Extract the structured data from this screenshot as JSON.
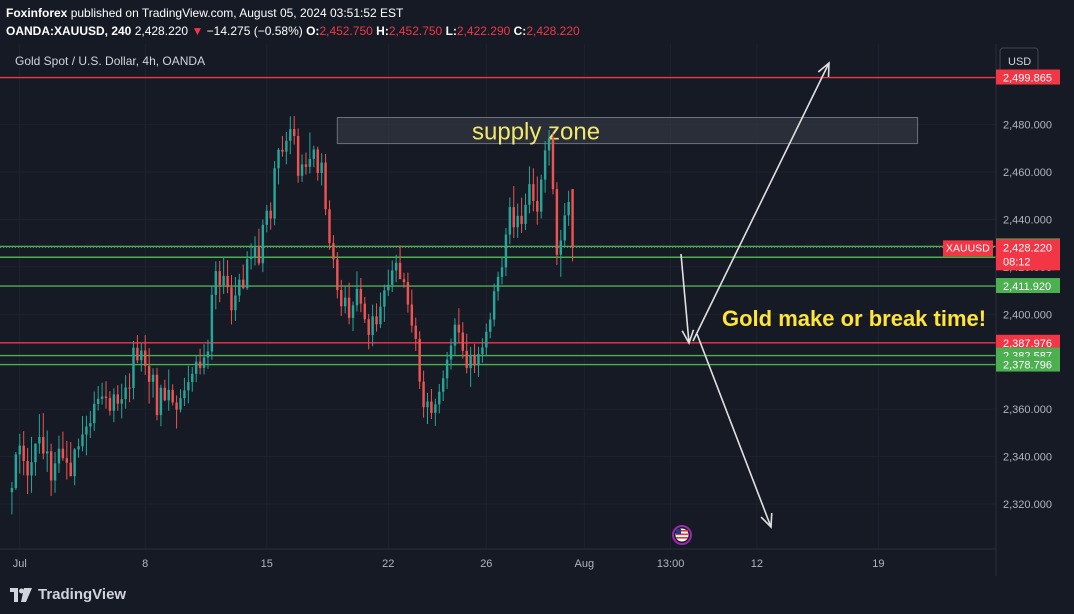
{
  "header": {
    "publisher": "Foxinforex",
    "published_text": "published on TradingView.com, August 05, 2024 03:51:52 EST",
    "symbol": "OANDA:XAUUSD, 240",
    "price": "2,428.220",
    "change_arrow": "▼",
    "change": "−14.275 (−0.58%)",
    "o_label": "O:",
    "o_value": "2,452.750",
    "h_label": "H:",
    "h_value": "2,452.750",
    "l_label": "L:",
    "l_value": "2,422.290",
    "c_label": "C:",
    "c_value": "2,428.220"
  },
  "footer": {
    "logo_text": "TradingView"
  },
  "chart_data": {
    "type": "candlestick",
    "title": "Gold Spot / U.S. Dollar, 4h, OANDA",
    "currency": "USD",
    "ylim": [
      2301,
      2514
    ],
    "y_ticks": [
      2320,
      2340,
      2360,
      2380,
      2400,
      2420,
      2440,
      2460,
      2480
    ],
    "y_tick_labels": [
      "2,320.000",
      "2,340.000",
      "2,360.000",
      "2,380.000",
      "2,400.000",
      "2,420.000",
      "2,440.000",
      "2,460.000",
      "2,480.000"
    ],
    "x_labels": [
      {
        "label": "Jul",
        "at": 2
      },
      {
        "label": "8",
        "at": 34
      },
      {
        "label": "15",
        "at": 65
      },
      {
        "label": "22",
        "at": 96
      },
      {
        "label": "26",
        "at": 121
      },
      {
        "label": "Aug",
        "at": 146
      },
      {
        "label": "13:00",
        "at": 168
      },
      {
        "label": "12",
        "at": 190
      },
      {
        "label": "19",
        "at": 221
      }
    ],
    "x_range": [
      -1,
      251
    ],
    "candles": [
      [
        2325.0,
        2329.3,
        2315.6,
        2326.7
      ],
      [
        2326.7,
        2341.9,
        2325.9,
        2340.9
      ],
      [
        2340.9,
        2349.6,
        2332.8,
        2344.6
      ],
      [
        2344.6,
        2350.7,
        2332.1,
        2338.1
      ],
      [
        2338.1,
        2343.6,
        2324.2,
        2332.0
      ],
      [
        2332.0,
        2348.3,
        2324.7,
        2337.6
      ],
      [
        2337.6,
        2345.5,
        2331.9,
        2345.5
      ],
      [
        2345.5,
        2357.9,
        2341.2,
        2348.2
      ],
      [
        2348.2,
        2358.3,
        2338.8,
        2341.3
      ],
      [
        2341.3,
        2351.0,
        2333.5,
        2342.2
      ],
      [
        2342.2,
        2345.4,
        2323.4,
        2329.9
      ],
      [
        2329.9,
        2341.9,
        2324.7,
        2337.1
      ],
      [
        2337.1,
        2348.8,
        2333.1,
        2343.3
      ],
      [
        2343.3,
        2350.5,
        2338.2,
        2339.3
      ],
      [
        2339.3,
        2346.6,
        2330.3,
        2337.4
      ],
      [
        2337.4,
        2346.1,
        2331.7,
        2331.7
      ],
      [
        2331.7,
        2343.6,
        2327.9,
        2343.0
      ],
      [
        2343.0,
        2347.6,
        2339.5,
        2344.3
      ],
      [
        2344.3,
        2357.1,
        2342.2,
        2349.3
      ],
      [
        2349.3,
        2357.2,
        2340.5,
        2352.7
      ],
      [
        2352.7,
        2359.3,
        2347.8,
        2354.1
      ],
      [
        2354.1,
        2367.4,
        2350.8,
        2362.2
      ],
      [
        2362.2,
        2369.8,
        2359.4,
        2364.3
      ],
      [
        2364.3,
        2371.1,
        2361.9,
        2365.3
      ],
      [
        2365.3,
        2371.8,
        2360.2,
        2364.7
      ],
      [
        2364.7,
        2367.6,
        2357.3,
        2359.3
      ],
      [
        2359.3,
        2368.8,
        2354.5,
        2366.2
      ],
      [
        2366.2,
        2370.1,
        2359.3,
        2362.3
      ],
      [
        2362.3,
        2370.7,
        2356.1,
        2364.2
      ],
      [
        2364.2,
        2374.3,
        2360.2,
        2369.1
      ],
      [
        2369.1,
        2375.1,
        2362.9,
        2368.9
      ],
      [
        2368.9,
        2388.8,
        2364.1,
        2385.9
      ],
      [
        2385.9,
        2391.2,
        2379.4,
        2380.6
      ],
      [
        2380.6,
        2387.7,
        2375.8,
        2384.7
      ],
      [
        2384.7,
        2391.2,
        2374.4,
        2378.2
      ],
      [
        2378.2,
        2385.7,
        2362.3,
        2371.5
      ],
      [
        2371.5,
        2377.2,
        2364.9,
        2374.5
      ],
      [
        2374.5,
        2377.4,
        2355.3,
        2357.5
      ],
      [
        2357.5,
        2370.3,
        2352.8,
        2369.0
      ],
      [
        2369.0,
        2372.4,
        2363.3,
        2363.7
      ],
      [
        2363.7,
        2376.7,
        2359.3,
        2368.1
      ],
      [
        2368.1,
        2370.5,
        2361.5,
        2362.8
      ],
      [
        2362.8,
        2365.8,
        2351.8,
        2359.8
      ],
      [
        2359.8,
        2368.4,
        2358.6,
        2364.6
      ],
      [
        2364.6,
        2373.2,
        2361.3,
        2367.9
      ],
      [
        2367.9,
        2378.3,
        2362.4,
        2371.4
      ],
      [
        2371.4,
        2377.8,
        2367.3,
        2374.9
      ],
      [
        2374.9,
        2382.8,
        2371.4,
        2380.0
      ],
      [
        2380.0,
        2385.5,
        2374.6,
        2377.4
      ],
      [
        2377.4,
        2387.4,
        2374.6,
        2381.8
      ],
      [
        2381.8,
        2389.3,
        2377.0,
        2384.3
      ],
      [
        2384.3,
        2412.0,
        2380.8,
        2408.2
      ],
      [
        2408.2,
        2422.3,
        2402.1,
        2418.2
      ],
      [
        2418.2,
        2422.5,
        2405.1,
        2412.3
      ],
      [
        2412.3,
        2424.2,
        2408.6,
        2416.2
      ],
      [
        2416.2,
        2422.8,
        2408.9,
        2411.4
      ],
      [
        2411.4,
        2416.6,
        2395.7,
        2401.7
      ],
      [
        2401.7,
        2415.7,
        2397.2,
        2407.9
      ],
      [
        2407.9,
        2417.1,
        2405.2,
        2414.6
      ],
      [
        2414.6,
        2421.0,
        2410.5,
        2411.0
      ],
      [
        2411.0,
        2426.6,
        2410.3,
        2423.3
      ],
      [
        2423.3,
        2429.9,
        2418.9,
        2424.3
      ],
      [
        2424.3,
        2432.9,
        2420.6,
        2428.3
      ],
      [
        2428.3,
        2436.1,
        2420.6,
        2421.5
      ],
      [
        2421.5,
        2440.0,
        2417.8,
        2437.7
      ],
      [
        2437.7,
        2446.1,
        2434.6,
        2443.7
      ],
      [
        2443.7,
        2447.2,
        2435.7,
        2440.4
      ],
      [
        2440.4,
        2464.6,
        2437.5,
        2461.6
      ],
      [
        2461.6,
        2470.1,
        2454.8,
        2469.4
      ],
      [
        2469.4,
        2475.2,
        2466.5,
        2468.6
      ],
      [
        2468.6,
        2476.9,
        2463.3,
        2473.2
      ],
      [
        2473.2,
        2483.5,
        2467.5,
        2478.1
      ],
      [
        2478.1,
        2483.6,
        2471.6,
        2475.2
      ],
      [
        2475.2,
        2478.4,
        2455.5,
        2458.4
      ],
      [
        2458.4,
        2467.4,
        2455.8,
        2463.2
      ],
      [
        2463.2,
        2468.2,
        2458.9,
        2462.2
      ],
      [
        2462.2,
        2476.7,
        2459.4,
        2465.5
      ],
      [
        2465.5,
        2471.1,
        2462.0,
        2469.5
      ],
      [
        2469.5,
        2470.7,
        2456.4,
        2459.6
      ],
      [
        2459.6,
        2467.9,
        2454.3,
        2464.0
      ],
      [
        2464.0,
        2467.6,
        2441.8,
        2444.3
      ],
      [
        2444.3,
        2448.1,
        2427.2,
        2430.0
      ],
      [
        2430.0,
        2433.4,
        2419.5,
        2423.2
      ],
      [
        2423.2,
        2426.2,
        2406.7,
        2410.2
      ],
      [
        2410.2,
        2414.5,
        2399.3,
        2403.4
      ],
      [
        2403.4,
        2411.8,
        2400.4,
        2407.0
      ],
      [
        2407.0,
        2413.3,
        2395.8,
        2398.5
      ],
      [
        2398.5,
        2405.4,
        2392.9,
        2403.8
      ],
      [
        2403.8,
        2418.1,
        2401.2,
        2410.7
      ],
      [
        2410.7,
        2415.3,
        2400.9,
        2404.5
      ],
      [
        2404.5,
        2407.3,
        2396.3,
        2397.9
      ],
      [
        2397.9,
        2400.1,
        2385.2,
        2391.3
      ],
      [
        2391.3,
        2404.1,
        2386.5,
        2399.1
      ],
      [
        2399.1,
        2404.6,
        2392.7,
        2395.8
      ],
      [
        2395.8,
        2409.2,
        2394.2,
        2403.2
      ],
      [
        2403.2,
        2412.5,
        2396.8,
        2410.1
      ],
      [
        2410.1,
        2418.8,
        2407.7,
        2412.4
      ],
      [
        2412.4,
        2422.7,
        2409.4,
        2418.5
      ],
      [
        2418.5,
        2425.1,
        2413.5,
        2421.7
      ],
      [
        2421.7,
        2429.1,
        2415.3,
        2414.8
      ],
      [
        2414.8,
        2417.5,
        2411.2,
        2413.6
      ],
      [
        2413.6,
        2417.6,
        2400.7,
        2404.1
      ],
      [
        2404.1,
        2410.4,
        2392.3,
        2395.2
      ],
      [
        2395.2,
        2398.6,
        2384.5,
        2389.6
      ],
      [
        2389.6,
        2392.8,
        2368.5,
        2371.6
      ],
      [
        2371.6,
        2376.2,
        2356.4,
        2360.8
      ],
      [
        2360.8,
        2366.9,
        2353.7,
        2363.2
      ],
      [
        2363.2,
        2368.5,
        2355.8,
        2358.4
      ],
      [
        2358.4,
        2364.4,
        2352.9,
        2362.0
      ],
      [
        2362.0,
        2370.6,
        2358.2,
        2367.3
      ],
      [
        2367.3,
        2376.3,
        2363.4,
        2373.0
      ],
      [
        2373.0,
        2384.1,
        2368.5,
        2380.9
      ],
      [
        2380.9,
        2389.8,
        2376.7,
        2386.8
      ],
      [
        2386.8,
        2398.3,
        2382.9,
        2395.6
      ],
      [
        2395.6,
        2402.6,
        2387.7,
        2392.3
      ],
      [
        2392.3,
        2396.7,
        2381.3,
        2384.6
      ],
      [
        2384.6,
        2391.8,
        2375.1,
        2377.3
      ],
      [
        2377.3,
        2386.3,
        2369.4,
        2382.9
      ],
      [
        2382.9,
        2387.5,
        2375.2,
        2378.4
      ],
      [
        2378.4,
        2386.3,
        2373.6,
        2383.2
      ],
      [
        2383.2,
        2389.9,
        2379.6,
        2386.0
      ],
      [
        2386.0,
        2396.1,
        2382.3,
        2392.6
      ],
      [
        2392.6,
        2400.7,
        2389.9,
        2397.8
      ],
      [
        2397.8,
        2412.9,
        2394.9,
        2409.7
      ],
      [
        2409.7,
        2418.0,
        2405.8,
        2415.8
      ],
      [
        2415.8,
        2423.9,
        2412.6,
        2419.8
      ],
      [
        2419.8,
        2436.4,
        2416.1,
        2433.6
      ],
      [
        2433.6,
        2449.3,
        2429.6,
        2445.2
      ],
      [
        2445.2,
        2454.1,
        2432.2,
        2436.7
      ],
      [
        2436.7,
        2446.7,
        2432.2,
        2441.5
      ],
      [
        2441.5,
        2449.2,
        2434.3,
        2438.1
      ],
      [
        2438.1,
        2450.9,
        2435.5,
        2446.2
      ],
      [
        2446.2,
        2462.4,
        2442.6,
        2454.9
      ],
      [
        2454.9,
        2461.6,
        2443.4,
        2447.8
      ],
      [
        2447.8,
        2458.1,
        2437.8,
        2443.3
      ],
      [
        2443.3,
        2458.9,
        2440.4,
        2456.8
      ],
      [
        2456.8,
        2473.1,
        2451.3,
        2469.1
      ],
      [
        2469.1,
        2477.7,
        2462.7,
        2474.2
      ],
      [
        2474.2,
        2476.4,
        2450.6,
        2452.8
      ],
      [
        2452.8,
        2455.7,
        2420.8,
        2425.1
      ],
      [
        2425.1,
        2435.6,
        2415.8,
        2431.1
      ],
      [
        2431.1,
        2446.9,
        2428.2,
        2441.7
      ],
      [
        2441.7,
        2452.1,
        2437.3,
        2447.4
      ],
      [
        2452.8,
        2452.8,
        2422.3,
        2428.2
      ]
    ],
    "levels": [
      {
        "value": 2499.865,
        "label": "2,499.865",
        "color": "#f23645"
      },
      {
        "value": 2428.616,
        "label": "2,428.616",
        "color": "#4caf50"
      },
      {
        "value": 2424.055,
        "label": "2,424.055",
        "color": "#4caf50"
      },
      {
        "value": 2411.92,
        "label": "2,411.920",
        "color": "#4caf50"
      },
      {
        "value": 2387.976,
        "label": "2,387.976",
        "color": "#f23645"
      },
      {
        "value": 2382.587,
        "label": "2,382.587",
        "color": "#4caf50"
      },
      {
        "value": 2378.796,
        "label": "2,378.796",
        "color": "#4caf50"
      }
    ],
    "current": {
      "symbol": "XAUUSD",
      "price": "2,428.220",
      "countdown": "08:12",
      "value": 2428.22
    },
    "zone": {
      "label": "supply zone",
      "y_low": 2472,
      "y_high": 2483,
      "x_start": 83,
      "x_end": 231
    },
    "annotation": "Gold make or break time!",
    "colors": {
      "up": "#26a69a",
      "down": "#ef5350",
      "zone_text": "#f2e86d",
      "annotation_text": "#ffe43a",
      "arrow": "#e0e0e0"
    }
  }
}
